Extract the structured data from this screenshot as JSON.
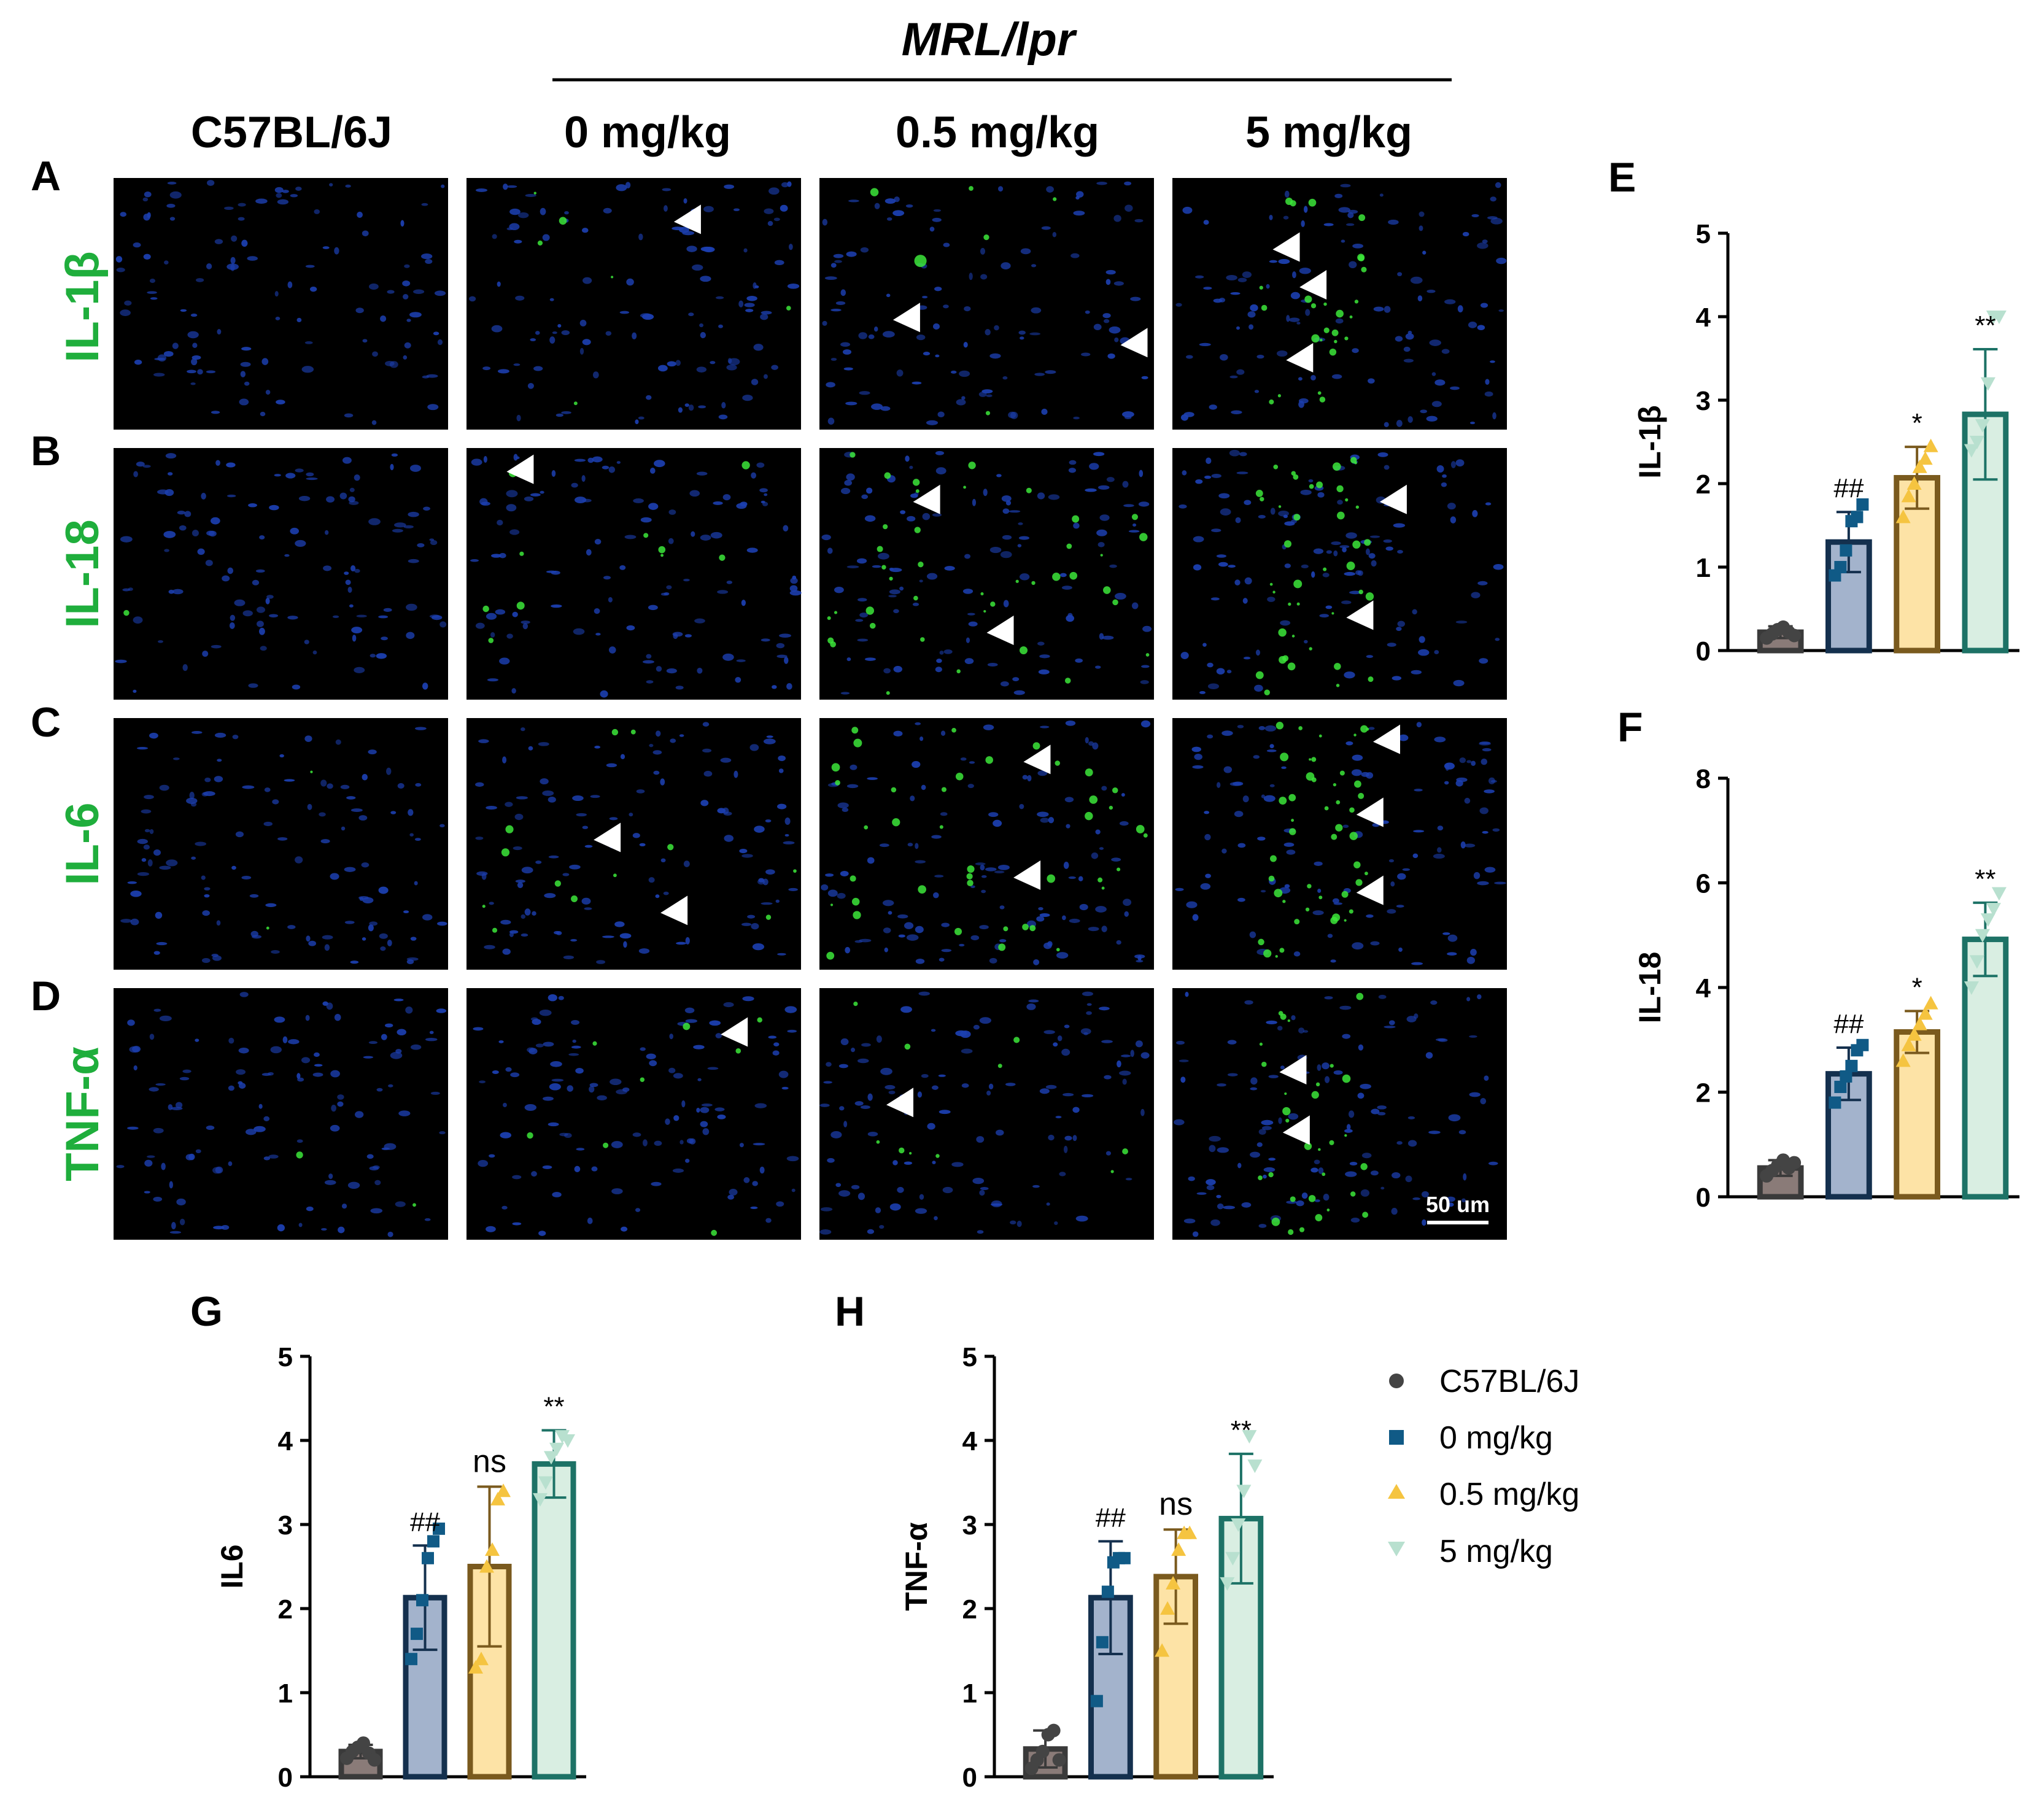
{
  "figure": {
    "group_header": "MRL/lpr",
    "column_headers": [
      "C57BL/6J",
      "0 mg/kg",
      "0.5 mg/kg",
      "5 mg/kg"
    ],
    "micrograph_rows": [
      {
        "panel": "A",
        "stain": "IL-1β"
      },
      {
        "panel": "B",
        "stain": "IL-18"
      },
      {
        "panel": "C",
        "stain": "IL-6"
      },
      {
        "panel": "D",
        "stain": "TNF-α"
      }
    ],
    "scale_bar": "50 um",
    "colors": {
      "stain_label": "#1fae3c",
      "nucleus": "#1c3fb0",
      "marker": "#3ce63a",
      "group_fill": [
        "#8a7b78",
        "#a3b3cc",
        "#fde3a6",
        "#d9eee2"
      ],
      "group_edge": [
        "#3a3a3a",
        "#14304e",
        "#7a5a1e",
        "#1d7266"
      ],
      "point_color": [
        "#444444",
        "#105a86",
        "#f5c440",
        "#b8e0cf"
      ]
    }
  },
  "legend": {
    "items": [
      {
        "label": "C57BL/6J",
        "marker": "circle"
      },
      {
        "label": "0 mg/kg",
        "marker": "square"
      },
      {
        "label": "0.5 mg/kg",
        "marker": "triangle-up"
      },
      {
        "label": "5 mg/kg",
        "marker": "triangle-down"
      }
    ]
  },
  "chart_data": [
    {
      "panel": "E",
      "type": "bar",
      "ylabel": "IL-1β",
      "ylim": [
        0,
        5
      ],
      "yticks": [
        0,
        1,
        2,
        3,
        4,
        5
      ],
      "categories": [
        "C57BL/6J",
        "0 mg/kg",
        "0.5 mg/kg",
        "5 mg/kg"
      ],
      "values": [
        0.22,
        1.3,
        2.07,
        2.83
      ],
      "error": [
        0.07,
        0.36,
        0.37,
        0.78
      ],
      "significance": [
        "",
        "##",
        "*",
        "**"
      ],
      "points": [
        [
          0.15,
          0.2,
          0.25,
          0.28,
          0.22,
          0.18
        ],
        [
          0.9,
          1.0,
          1.2,
          1.55,
          1.6,
          1.75
        ],
        [
          1.6,
          1.85,
          2.0,
          2.2,
          2.3,
          2.45
        ],
        [
          2.4,
          2.5,
          2.7,
          3.2,
          4.0,
          4.0
        ]
      ]
    },
    {
      "panel": "F",
      "type": "bar",
      "ylabel": "IL-18",
      "ylim": [
        0,
        8
      ],
      "yticks": [
        0,
        2,
        4,
        6,
        8
      ],
      "categories": [
        "C57BL/6J",
        "0 mg/kg",
        "0.5 mg/kg",
        "5 mg/kg"
      ],
      "values": [
        0.55,
        2.35,
        3.15,
        4.92
      ],
      "error": [
        0.15,
        0.5,
        0.4,
        0.7
      ],
      "significance": [
        "",
        "##",
        "*",
        "**"
      ],
      "points": [
        [
          0.4,
          0.5,
          0.6,
          0.7,
          0.55,
          0.65
        ],
        [
          1.8,
          2.1,
          2.3,
          2.5,
          2.8,
          2.9
        ],
        [
          2.6,
          2.9,
          3.1,
          3.3,
          3.5,
          3.7
        ],
        [
          4.0,
          4.5,
          5.0,
          5.3,
          5.5,
          5.8
        ]
      ]
    },
    {
      "panel": "G",
      "type": "bar",
      "ylabel": "IL6",
      "ylim": [
        0,
        5
      ],
      "yticks": [
        0,
        1,
        2,
        3,
        4,
        5
      ],
      "categories": [
        "C57BL/6J",
        "0 mg/kg",
        "0.5 mg/kg",
        "5 mg/kg"
      ],
      "values": [
        0.3,
        2.13,
        2.5,
        3.72
      ],
      "error": [
        0.08,
        0.62,
        0.95,
        0.4
      ],
      "significance": [
        "",
        "##",
        "ns",
        "**"
      ],
      "points": [
        [
          0.22,
          0.3,
          0.35,
          0.4,
          0.28,
          0.2
        ],
        [
          1.4,
          1.7,
          2.1,
          2.6,
          2.8,
          2.95
        ],
        [
          1.3,
          1.4,
          2.5,
          2.7,
          3.3,
          3.4
        ],
        [
          3.3,
          3.5,
          3.8,
          3.9,
          4.05,
          4.0
        ]
      ]
    },
    {
      "panel": "H",
      "type": "bar",
      "ylabel": "TNF-α",
      "ylim": [
        0,
        5
      ],
      "yticks": [
        0,
        1,
        2,
        3,
        4,
        5
      ],
      "categories": [
        "C57BL/6J",
        "0 mg/kg",
        "0.5 mg/kg",
        "5 mg/kg"
      ],
      "values": [
        0.33,
        2.13,
        2.38,
        3.07
      ],
      "error": [
        0.22,
        0.67,
        0.56,
        0.77
      ],
      "significance": [
        "",
        "##",
        "ns",
        "**"
      ],
      "points": [
        [
          0.1,
          0.2,
          0.3,
          0.5,
          0.55,
          0.2
        ],
        [
          0.9,
          1.6,
          2.2,
          2.55,
          2.6,
          2.6
        ],
        [
          1.5,
          2.0,
          2.3,
          2.7,
          2.9,
          2.9
        ],
        [
          2.3,
          2.6,
          3.0,
          3.4,
          4.05,
          3.7
        ]
      ]
    }
  ]
}
